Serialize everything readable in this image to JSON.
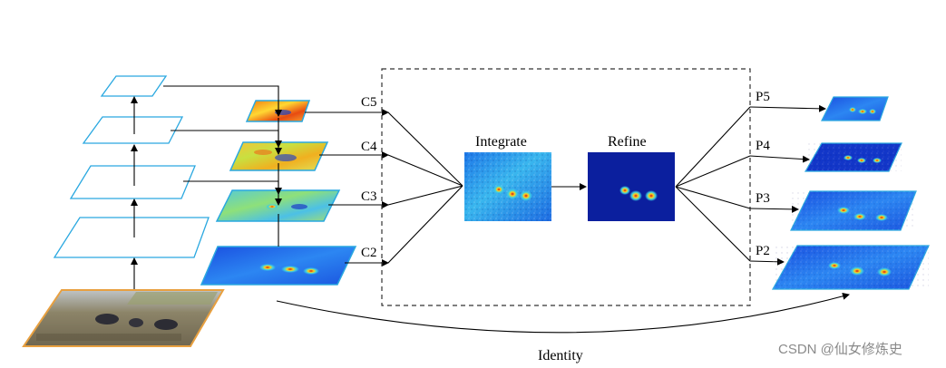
{
  "diagram": {
    "stage_labels": [
      "C5",
      "C4",
      "C3",
      "C2"
    ],
    "output_labels": [
      "P5",
      "P4",
      "P3",
      "P2"
    ],
    "integrate_title": "Integrate",
    "refine_title": "Refine",
    "identity_label": "Identity",
    "watermark": "CSDN @仙女修炼史",
    "colors": {
      "backbone_outline": "#2aa8e0",
      "input_border": "#e8a040",
      "heat_low": "#0b1f9e",
      "heat_high": "#e83010",
      "dashed_box": "#333333"
    }
  }
}
